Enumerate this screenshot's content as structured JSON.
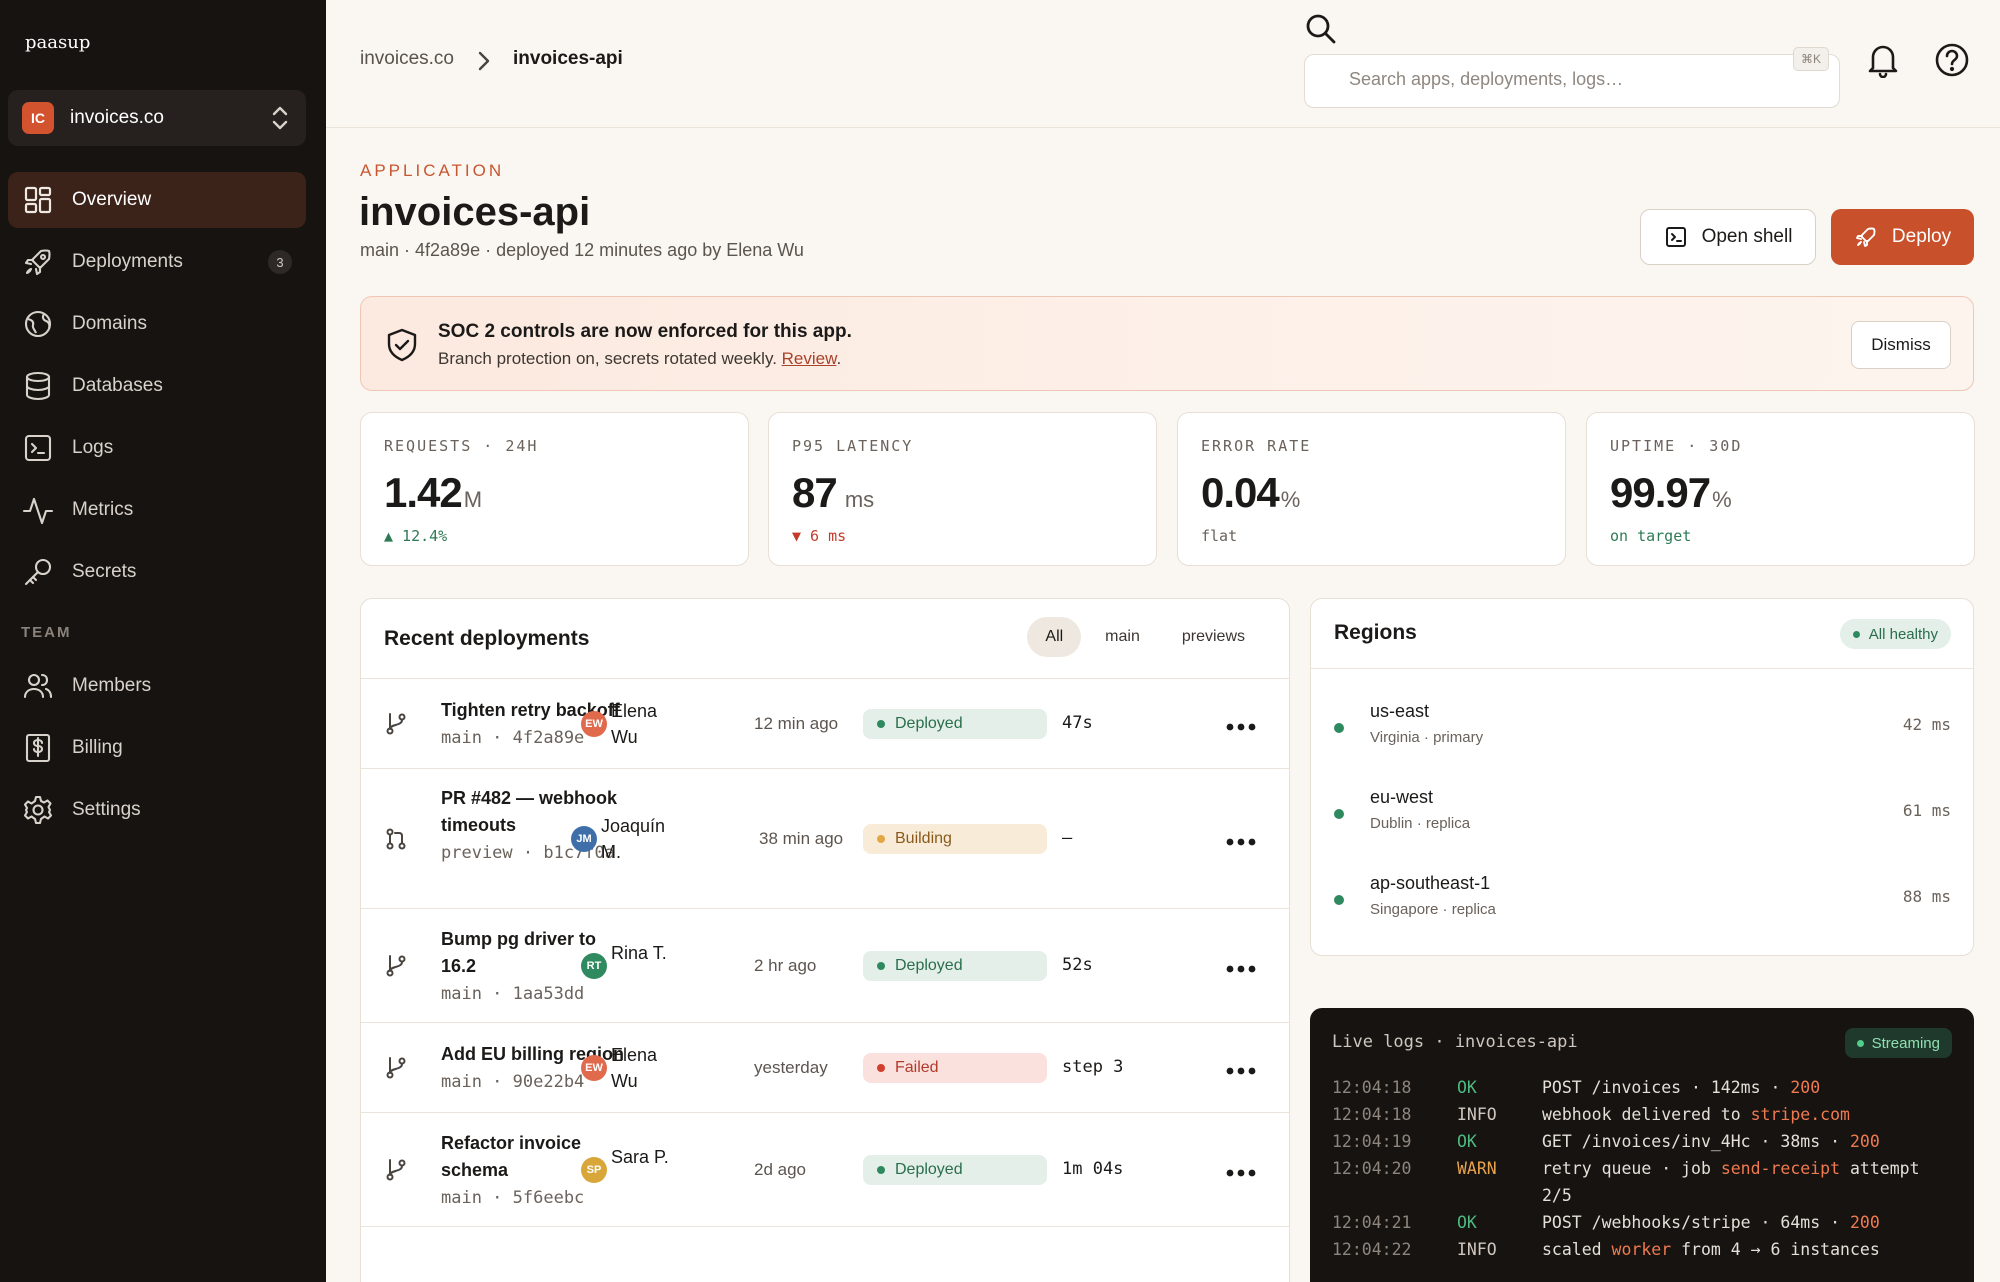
{
  "brand": {
    "logo": "paasup"
  },
  "org": {
    "initials": "IC",
    "name": "invoices.co"
  },
  "nav": [
    {
      "label": "Overview",
      "icon": "dashboard-icon"
    },
    {
      "label": "Deployments",
      "icon": "rocket-icon",
      "count": "3"
    },
    {
      "label": "Domains",
      "icon": "globe-icon"
    },
    {
      "label": "Databases",
      "icon": "database-icon"
    },
    {
      "label": "Logs",
      "icon": "terminal-icon"
    },
    {
      "label": "Metrics",
      "icon": "activity-icon"
    },
    {
      "label": "Secrets",
      "icon": "key-icon"
    }
  ],
  "team_section": "TEAM",
  "team_nav": [
    {
      "label": "Members",
      "icon": "users-icon"
    },
    {
      "label": "Billing",
      "icon": "dollar-receipt-icon"
    },
    {
      "label": "Settings",
      "icon": "gear-icon"
    }
  ],
  "breadcrumb": {
    "parent": "invoices.co",
    "current": "invoices-api"
  },
  "search": {
    "placeholder": "Search apps, deployments, logs…",
    "shortcut": "⌘K"
  },
  "header": {
    "eyebrow": "APPLICATION",
    "title": "invoices-api",
    "meta": "main · 4f2a89e · deployed 12 minutes ago by Elena Wu",
    "open_shell": "Open shell",
    "deploy": "Deploy"
  },
  "banner": {
    "title": "SOC 2 controls are now enforced for this app.",
    "text": "Branch protection on, secrets rotated weekly. ",
    "link": "Review",
    "text_end": ".",
    "dismiss": "Dismiss"
  },
  "stats": [
    {
      "label": "REQUESTS · 24H",
      "value": "1.42",
      "unit": "M",
      "sub": "▲ 12.4%",
      "tone": "green"
    },
    {
      "label": "P95 LATENCY",
      "value": "87",
      "unit": " ms",
      "sub": "▼ 6 ms",
      "tone": "red"
    },
    {
      "label": "ERROR RATE",
      "value": "0.04",
      "unit": "%",
      "sub": "flat",
      "tone": "grey"
    },
    {
      "label": "UPTIME · 30D",
      "value": "99.97",
      "unit": "%",
      "sub": "on target",
      "tone": "green"
    }
  ],
  "deployments": {
    "title": "Recent deployments",
    "filters": [
      "All",
      "main",
      "previews"
    ],
    "rows": [
      {
        "title": "Tighten retry backoff",
        "ref": "main · 4f2a89e",
        "initials": "EW",
        "avatar_color": "#e06a4b",
        "author": "Elena Wu",
        "age": "12 min ago",
        "status": "Deployed",
        "duration": "47s"
      },
      {
        "title": "PR #482 — webhook timeouts",
        "ref": "preview · b1c7f0a",
        "initials": "JM",
        "avatar_color": "#3f6fa8",
        "author": "Joaquín M.",
        "age": "38 min ago",
        "status": "Building",
        "duration": "–"
      },
      {
        "title": "Bump pg driver to 16.2",
        "ref": "main · 1aa53dd",
        "initials": "RT",
        "avatar_color": "#2f8a5f",
        "author": "Rina T.",
        "age": "2 hr ago",
        "status": "Deployed",
        "duration": "52s"
      },
      {
        "title": "Add EU billing region",
        "ref": "main · 90e22b4",
        "initials": "EW",
        "avatar_color": "#e06a4b",
        "author": "Elena Wu",
        "age": "yesterday",
        "status": "Failed",
        "duration": "step 3"
      },
      {
        "title": "Refactor invoice schema",
        "ref": "main · 5f6eebc",
        "initials": "SP",
        "avatar_color": "#d9a63a",
        "author": "Sara P.",
        "age": "2d ago",
        "status": "Deployed",
        "duration": "1m 04s"
      }
    ]
  },
  "regions": {
    "title": "Regions",
    "badge": "All healthy",
    "items": [
      {
        "name": "us-east",
        "desc": "Virginia · primary",
        "latency": "42 ms"
      },
      {
        "name": "eu-west",
        "desc": "Dublin · replica",
        "latency": "61 ms"
      },
      {
        "name": "ap-southeast-1",
        "desc": "Singapore · replica",
        "latency": "88 ms"
      }
    ]
  },
  "logs": {
    "title": "Live logs · invoices-api",
    "badge": "Streaming",
    "lines": [
      {
        "time": "12:04:18",
        "level": "OK",
        "parts": [
          [
            "POST /invoices · 142ms · ",
            ""
          ],
          [
            "200",
            "hl"
          ]
        ]
      },
      {
        "time": "12:04:18",
        "level": "INFO",
        "parts": [
          [
            "webhook delivered to ",
            ""
          ],
          [
            "stripe.com",
            "hl"
          ]
        ]
      },
      {
        "time": "12:04:19",
        "level": "OK",
        "parts": [
          [
            "GET /invoices/inv_4Hc · 38ms · ",
            ""
          ],
          [
            "200",
            "hl"
          ]
        ]
      },
      {
        "time": "12:04:20",
        "level": "WARN",
        "parts": [
          [
            "retry queue · job ",
            ""
          ],
          [
            "send-receipt",
            "hl"
          ],
          [
            " attempt",
            ""
          ]
        ]
      },
      {
        "time": "",
        "level": "",
        "parts": [
          [
            "2/5",
            ""
          ]
        ]
      },
      {
        "time": "12:04:21",
        "level": "OK",
        "parts": [
          [
            "POST /webhooks/stripe · 64ms · ",
            ""
          ],
          [
            "200",
            "hl"
          ]
        ]
      },
      {
        "time": "12:04:22",
        "level": "INFO",
        "parts": [
          [
            "scaled ",
            ""
          ],
          [
            "worker",
            "hl"
          ],
          [
            " from 4 → 6 instances",
            ""
          ]
        ]
      }
    ]
  }
}
